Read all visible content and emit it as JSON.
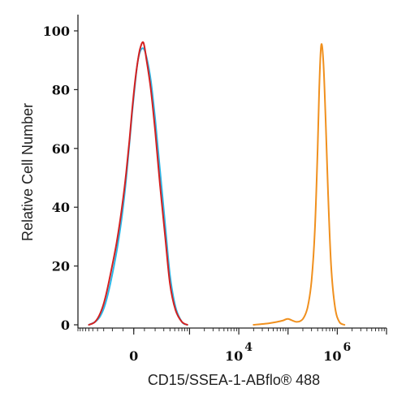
{
  "chart_data": {
    "type": "line",
    "title": "",
    "xlabel": "CD15/SSEA-1-ABflo® 488",
    "ylabel": "Relative Cell Number",
    "x_scale": "biexponential",
    "xlim": [
      -1000,
      10000000
    ],
    "ylim": [
      0,
      100
    ],
    "y_ticks": [
      "0",
      "20",
      "40",
      "60",
      "80",
      "100"
    ],
    "x_tick_labels": [
      {
        "base": "0",
        "exp": "",
        "value": 0
      },
      {
        "base": "10",
        "exp": "4",
        "value": 10000
      },
      {
        "base": "10",
        "exp": "6",
        "value": 1000000
      }
    ],
    "grid": false,
    "legend": "none",
    "series": [
      {
        "color": "#d42020",
        "x": [
          -600,
          -450,
          -350,
          -280,
          -220,
          -160,
          -110,
          -70,
          -40,
          -15,
          10,
          35,
          60,
          90,
          120,
          160,
          200,
          250,
          320,
          400,
          520,
          700,
          900
        ],
        "y": [
          0,
          1,
          4,
          9,
          17,
          28,
          40,
          52,
          63,
          73,
          82,
          89,
          94,
          96,
          90,
          80,
          66,
          48,
          30,
          14,
          5,
          1,
          0
        ]
      },
      {
        "color": "#2ab7e8",
        "x": [
          -600,
          -450,
          -350,
          -280,
          -220,
          -160,
          -110,
          -70,
          -40,
          -15,
          10,
          35,
          60,
          90,
          120,
          160,
          200,
          250,
          320,
          400,
          520,
          700,
          900
        ],
        "y": [
          0,
          1,
          3,
          7,
          14,
          25,
          37,
          50,
          62,
          72,
          81,
          89,
          93,
          94,
          91,
          83,
          70,
          53,
          34,
          17,
          6,
          1,
          0
        ]
      },
      {
        "color": "#f0901e",
        "x": [
          20000,
          40000,
          60000,
          80000,
          100000,
          150000,
          200000,
          250000,
          300000,
          350000,
          400000,
          430000,
          470000,
          520000,
          580000,
          650000,
          750000,
          900000,
          1100000,
          1400000
        ],
        "y": [
          0,
          0.5,
          1,
          1.5,
          2,
          1,
          2,
          6,
          15,
          32,
          60,
          80,
          95,
          90,
          70,
          45,
          20,
          6,
          1,
          0
        ]
      }
    ]
  }
}
